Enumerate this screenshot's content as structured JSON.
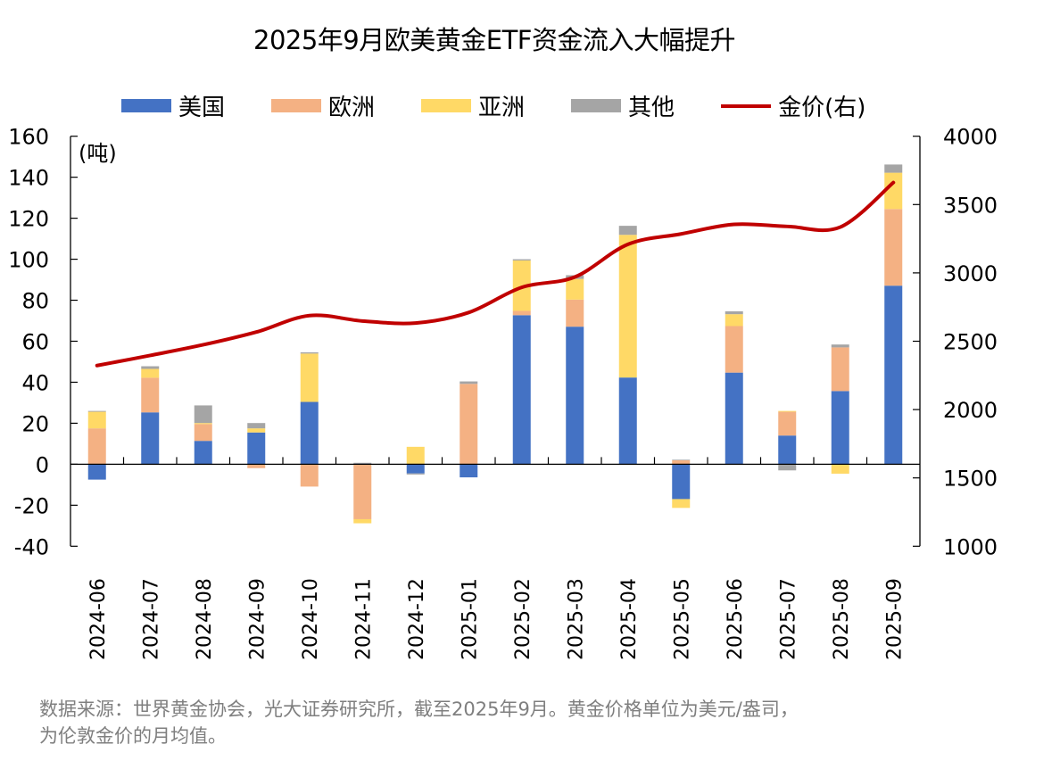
{
  "chart_data": {
    "type": "bar",
    "stacked": true,
    "title": "2025年9月欧美黄金ETF资金流入大幅提升",
    "ylabel": "(吨)",
    "ylabel_right": "",
    "ylim": [
      -40,
      160
    ],
    "ylim_right": [
      1000,
      4000
    ],
    "yticks": [
      160,
      140,
      120,
      100,
      80,
      60,
      40,
      20,
      0,
      -20,
      -40
    ],
    "yticks_right": [
      4000,
      3500,
      3000,
      2500,
      2000,
      1500,
      1000
    ],
    "legend_position": "top",
    "grid": false,
    "categories": [
      "2024-06",
      "2024-07",
      "2024-08",
      "2024-09",
      "2024-10",
      "2024-11",
      "2024-12",
      "2025-01",
      "2025-02",
      "2025-03",
      "2025-04",
      "2025-05",
      "2025-06",
      "2025-07",
      "2025-08",
      "2025-09"
    ],
    "series": [
      {
        "name": "美国",
        "color": "#4472c4",
        "type": "bar",
        "values": [
          -7.5,
          25.3,
          11.4,
          15.5,
          30.4,
          0.3,
          -4.5,
          -6.4,
          72.7,
          67.1,
          42.3,
          -17.0,
          44.7,
          14.0,
          35.7,
          87.1
        ]
      },
      {
        "name": "欧洲",
        "color": "#f4b183",
        "type": "bar",
        "values": [
          17.5,
          16.9,
          8.2,
          -1.9,
          -10.9,
          -26.8,
          0.0,
          39.2,
          2.1,
          13.2,
          0.0,
          1.9,
          22.7,
          11.6,
          21.3,
          37.4
        ]
      },
      {
        "name": "亚洲",
        "color": "#ffd966",
        "type": "bar",
        "values": [
          8.1,
          4.3,
          0.5,
          2.0,
          23.6,
          -2.0,
          8.5,
          0.0,
          24.6,
          10.1,
          69.6,
          -4.3,
          5.8,
          0.4,
          -4.6,
          17.7
        ]
      },
      {
        "name": "其他",
        "color": "#a5a5a5",
        "type": "bar",
        "values": [
          0.4,
          1.3,
          8.6,
          2.6,
          0.6,
          0.4,
          -0.5,
          1.2,
          0.6,
          1.8,
          4.4,
          0.3,
          1.4,
          -3.0,
          1.4,
          4.0
        ]
      },
      {
        "name": "金价(右)",
        "color": "#c00000",
        "type": "line",
        "axis": "right",
        "values": [
          2322,
          2396,
          2474,
          2567,
          2688,
          2648,
          2633,
          2710,
          2894,
          2970,
          3209,
          3285,
          3355,
          3340,
          3335,
          3661
        ]
      }
    ]
  },
  "footnote": {
    "line1": "数据来源：世界黄金协会，光大证券研究所，截至2025年9月。黄金价格单位为美元/盎司，",
    "line2": "为伦敦金价的月均值。"
  }
}
